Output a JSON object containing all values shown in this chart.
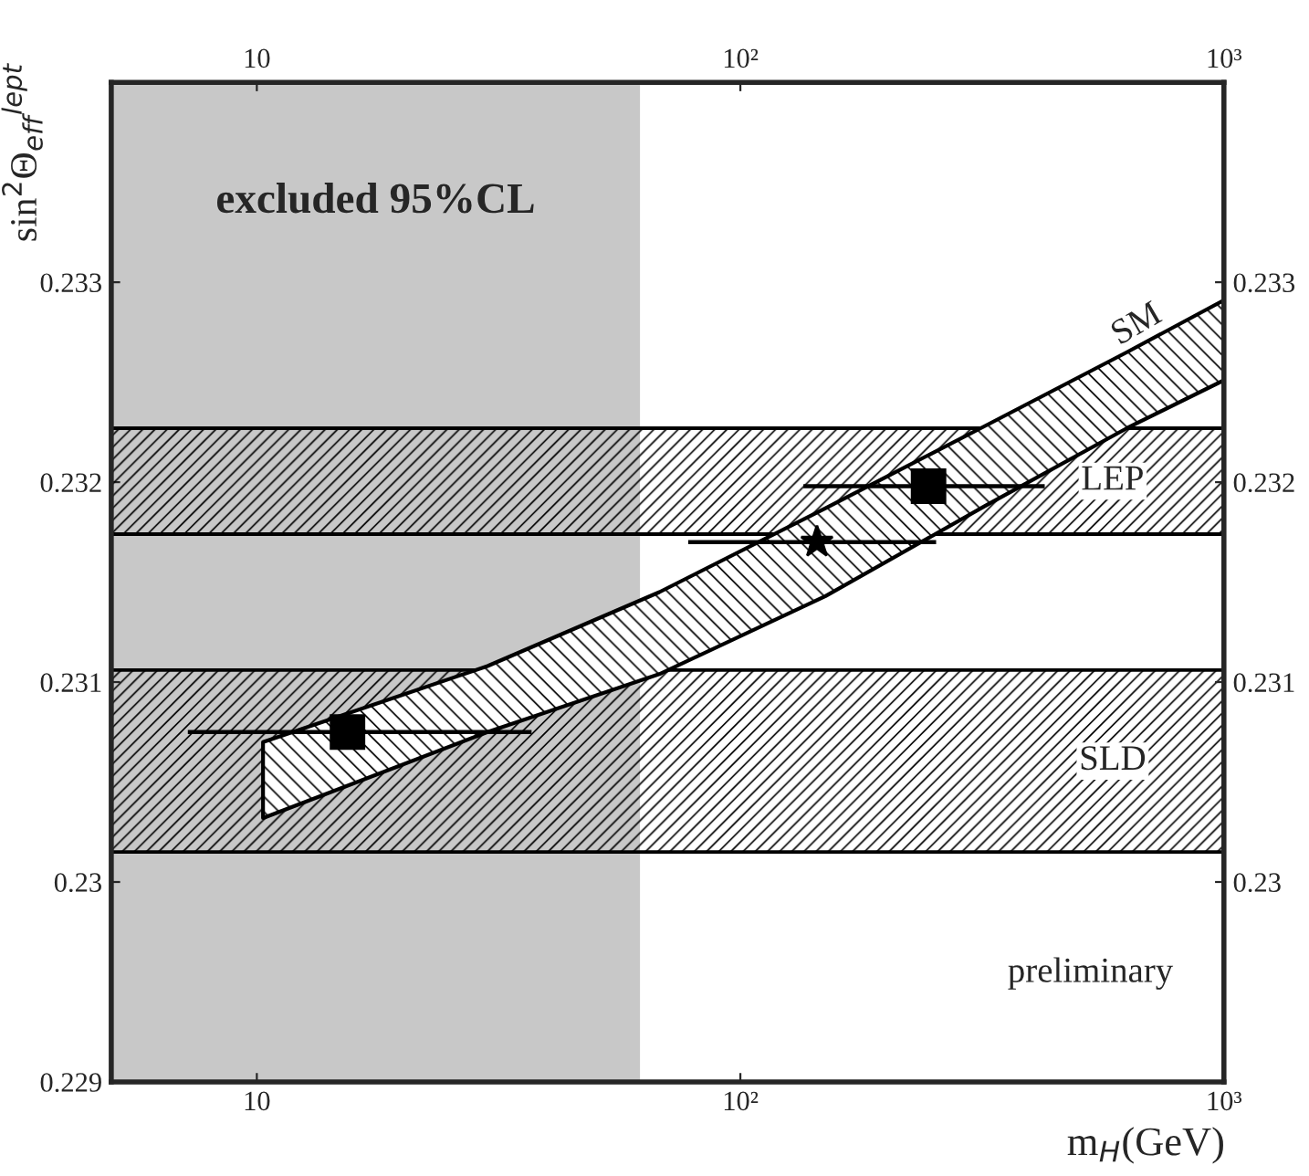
{
  "chart_data": {
    "type": "scatter",
    "xlabel": "m$_{H}$(GeV)",
    "ylabel": "sin$^{2}$Θ$_{eff}$$^{lept}$",
    "log": "x",
    "xlim": [
      5,
      1000
    ],
    "xticks": [
      {
        "value": 10,
        "label": "10"
      },
      {
        "value": 100,
        "label": "10²"
      },
      {
        "value": 1000,
        "label": "10³"
      }
    ],
    "ylim": [
      0.229,
      0.234
    ],
    "yticks": [
      0.229,
      0.23,
      0.231,
      0.232,
      0.233
    ],
    "y2lim": [
      0.229,
      0.234
    ],
    "y2ticks": [
      0.23,
      0.231,
      0.232,
      0.233
    ],
    "bands": [
      {
        "axis": "x",
        "from": 5,
        "to": 62,
        "label": "excluded 95%CL",
        "color": "#c8c8c8"
      },
      {
        "axis": "y",
        "from": 0.23174,
        "to": 0.23227,
        "label": "LEP",
        "color": "#000000"
      },
      {
        "axis": "y",
        "from": 0.23015,
        "to": 0.23106,
        "label": "SLD",
        "color": "#000000"
      }
    ],
    "series": [
      {
        "name": "SM",
        "type": "line",
        "color": "#000000",
        "x": [
          10.3,
          30,
          68,
          150,
          320,
          630,
          1000
        ],
        "values": [
          null,
          null,
          null,
          null,
          null,
          null,
          null
        ],
        "lower": [
          0.23032,
          0.23075,
          0.23104,
          0.23143,
          0.23188,
          0.23227,
          0.23251
        ],
        "upper": [
          0.2307,
          0.23108,
          0.23145,
          0.23187,
          0.23228,
          0.23265,
          0.23291
        ]
      },
      {
        "marker": "square",
        "color": "#000000",
        "x": [
          15.4,
          245
        ],
        "values": [
          0.23075,
          0.23198
        ],
        "xerrors": [
          [
            7.2,
            37
          ],
          [
            135,
            426
          ]
        ]
      },
      {
        "marker": "star",
        "color": "#000000",
        "x": [
          144
        ],
        "values": [
          0.2317
        ],
        "xerrors": [
          [
            78,
            254
          ]
        ]
      }
    ],
    "annotations": [
      "preliminary"
    ],
    "grid": false,
    "legend": false
  }
}
